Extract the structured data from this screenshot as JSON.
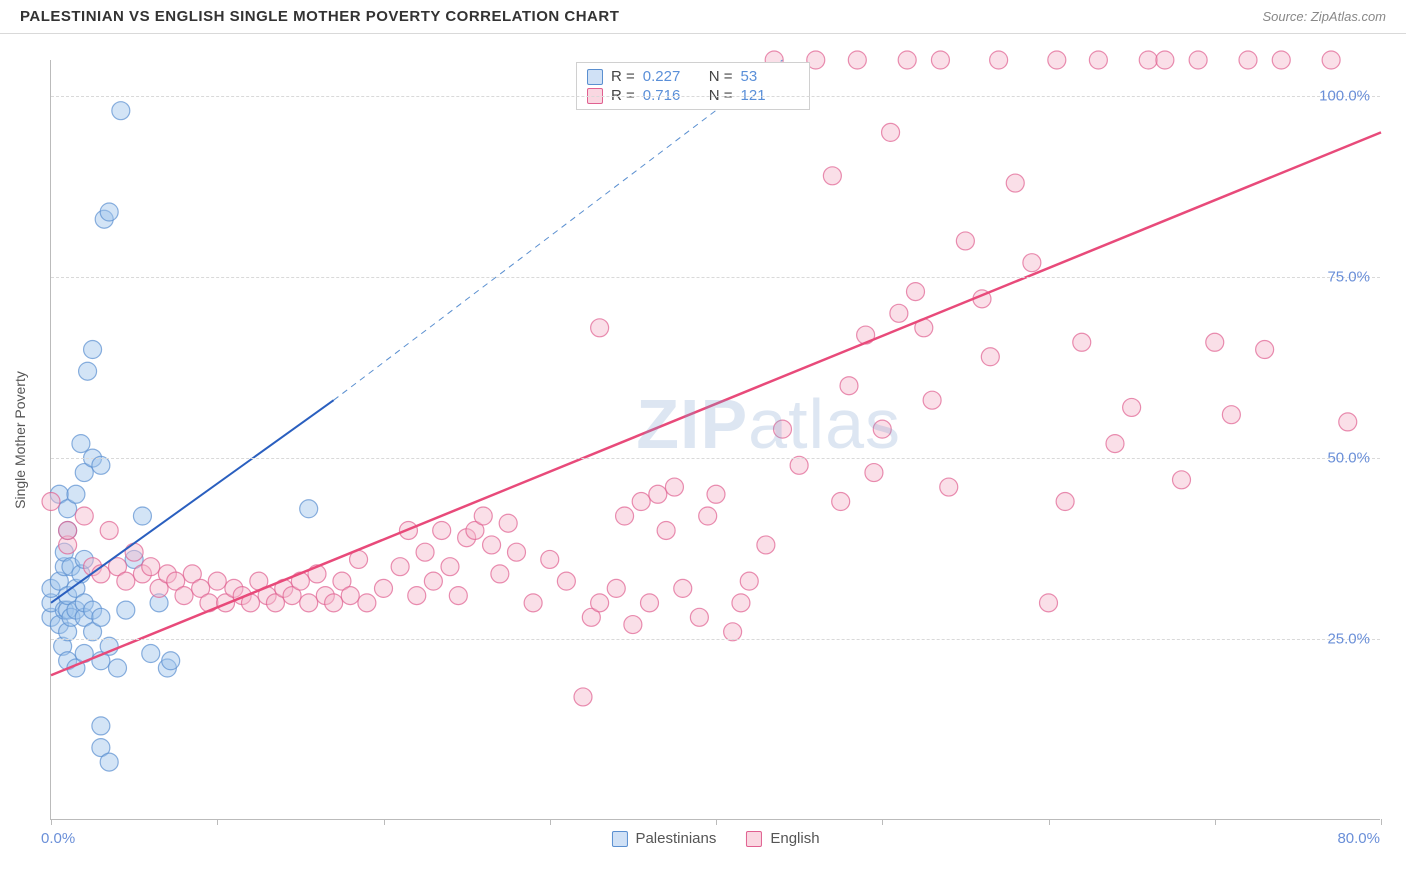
{
  "header": {
    "title": "PALESTINIAN VS ENGLISH SINGLE MOTHER POVERTY CORRELATION CHART",
    "source": "Source: ZipAtlas.com"
  },
  "chart": {
    "type": "scatter",
    "y_axis_label": "Single Mother Poverty",
    "xlim": [
      0,
      80
    ],
    "ylim": [
      0,
      105
    ],
    "x_label_start": "0.0%",
    "x_label_end": "80.0%",
    "y_ticks": [
      {
        "v": 25,
        "label": "25.0%"
      },
      {
        "v": 50,
        "label": "50.0%"
      },
      {
        "v": 75,
        "label": "75.0%"
      },
      {
        "v": 100,
        "label": "100.0%"
      }
    ],
    "x_tick_marks": [
      0,
      10,
      20,
      30,
      40,
      50,
      60,
      70,
      80
    ],
    "background_color": "#ffffff",
    "grid_color": "#d9d9d9",
    "marker_radius": 9,
    "marker_opacity": 0.45,
    "marker_stroke_width": 1.2,
    "watermark": "ZIPatlas",
    "series": [
      {
        "name": "Palestinians",
        "fill": "#9ec4ea",
        "stroke": "#5a8fd0",
        "r_value": "0.227",
        "n_value": "53",
        "trend": {
          "x1": 0,
          "y1": 30,
          "x2": 17,
          "y2": 58,
          "color": "#2a5fbf",
          "width": 2
        },
        "trend_dashed": {
          "x1": 17,
          "y1": 58,
          "x2": 44,
          "y2": 105,
          "color": "#5a8fd0",
          "width": 1
        },
        "points": [
          [
            0,
            28
          ],
          [
            0,
            30
          ],
          [
            0,
            32
          ],
          [
            0.5,
            27
          ],
          [
            0.5,
            33
          ],
          [
            0.5,
            45
          ],
          [
            0.7,
            24
          ],
          [
            0.8,
            29
          ],
          [
            0.8,
            35
          ],
          [
            0.8,
            37
          ],
          [
            1,
            22
          ],
          [
            1,
            26
          ],
          [
            1,
            29
          ],
          [
            1,
            31
          ],
          [
            1,
            40
          ],
          [
            1,
            43
          ],
          [
            1.2,
            28
          ],
          [
            1.2,
            35
          ],
          [
            1.5,
            21
          ],
          [
            1.5,
            29
          ],
          [
            1.5,
            32
          ],
          [
            1.5,
            45
          ],
          [
            1.8,
            34
          ],
          [
            1.8,
            52
          ],
          [
            2,
            23
          ],
          [
            2,
            28
          ],
          [
            2,
            30
          ],
          [
            2,
            36
          ],
          [
            2,
            48
          ],
          [
            2.2,
            62
          ],
          [
            2.5,
            26
          ],
          [
            2.5,
            29
          ],
          [
            2.5,
            50
          ],
          [
            2.5,
            65
          ],
          [
            3,
            10
          ],
          [
            3,
            13
          ],
          [
            3,
            22
          ],
          [
            3,
            28
          ],
          [
            3,
            49
          ],
          [
            3.2,
            83
          ],
          [
            3.5,
            8
          ],
          [
            3.5,
            24
          ],
          [
            3.5,
            84
          ],
          [
            4,
            21
          ],
          [
            4.2,
            98
          ],
          [
            4.5,
            29
          ],
          [
            5,
            36
          ],
          [
            5.5,
            42
          ],
          [
            6,
            23
          ],
          [
            6.5,
            30
          ],
          [
            7,
            21
          ],
          [
            7.2,
            22
          ],
          [
            15.5,
            43
          ]
        ]
      },
      {
        "name": "English",
        "fill": "#f5b8cc",
        "stroke": "#e06090",
        "r_value": "0.716",
        "n_value": "121",
        "trend": {
          "x1": 0,
          "y1": 20,
          "x2": 80,
          "y2": 95,
          "color": "#e84a7a",
          "width": 2.5
        },
        "points": [
          [
            0,
            44
          ],
          [
            1,
            38
          ],
          [
            1,
            40
          ],
          [
            2,
            42
          ],
          [
            2.5,
            35
          ],
          [
            3,
            34
          ],
          [
            3.5,
            40
          ],
          [
            4,
            35
          ],
          [
            4.5,
            33
          ],
          [
            5,
            37
          ],
          [
            5.5,
            34
          ],
          [
            6,
            35
          ],
          [
            6.5,
            32
          ],
          [
            7,
            34
          ],
          [
            7.5,
            33
          ],
          [
            8,
            31
          ],
          [
            8.5,
            34
          ],
          [
            9,
            32
          ],
          [
            9.5,
            30
          ],
          [
            10,
            33
          ],
          [
            10.5,
            30
          ],
          [
            11,
            32
          ],
          [
            11.5,
            31
          ],
          [
            12,
            30
          ],
          [
            12.5,
            33
          ],
          [
            13,
            31
          ],
          [
            13.5,
            30
          ],
          [
            14,
            32
          ],
          [
            14.5,
            31
          ],
          [
            15,
            33
          ],
          [
            15.5,
            30
          ],
          [
            16,
            34
          ],
          [
            16.5,
            31
          ],
          [
            17,
            30
          ],
          [
            17.5,
            33
          ],
          [
            18,
            31
          ],
          [
            18.5,
            36
          ],
          [
            19,
            30
          ],
          [
            20,
            32
          ],
          [
            21,
            35
          ],
          [
            21.5,
            40
          ],
          [
            22,
            31
          ],
          [
            22.5,
            37
          ],
          [
            23,
            33
          ],
          [
            23.5,
            40
          ],
          [
            24,
            35
          ],
          [
            24.5,
            31
          ],
          [
            25,
            39
          ],
          [
            25.5,
            40
          ],
          [
            26,
            42
          ],
          [
            26.5,
            38
          ],
          [
            27,
            34
          ],
          [
            27.5,
            41
          ],
          [
            28,
            37
          ],
          [
            29,
            30
          ],
          [
            30,
            36
          ],
          [
            31,
            33
          ],
          [
            32,
            17
          ],
          [
            32.5,
            28
          ],
          [
            33,
            30
          ],
          [
            33,
            68
          ],
          [
            34,
            32
          ],
          [
            34.5,
            42
          ],
          [
            35,
            27
          ],
          [
            35.5,
            44
          ],
          [
            36,
            30
          ],
          [
            36.5,
            45
          ],
          [
            37,
            40
          ],
          [
            37.5,
            46
          ],
          [
            38,
            32
          ],
          [
            39,
            28
          ],
          [
            39.5,
            42
          ],
          [
            40,
            45
          ],
          [
            41,
            26
          ],
          [
            41.5,
            30
          ],
          [
            42,
            33
          ],
          [
            43,
            38
          ],
          [
            43.5,
            105
          ],
          [
            44,
            54
          ],
          [
            45,
            49
          ],
          [
            45,
            103
          ],
          [
            46,
            105
          ],
          [
            47,
            89
          ],
          [
            47.5,
            44
          ],
          [
            48,
            60
          ],
          [
            48.5,
            105
          ],
          [
            49,
            67
          ],
          [
            49.5,
            48
          ],
          [
            50,
            54
          ],
          [
            50.5,
            95
          ],
          [
            51,
            70
          ],
          [
            51.5,
            105
          ],
          [
            52,
            73
          ],
          [
            52.5,
            68
          ],
          [
            53,
            58
          ],
          [
            53.5,
            105
          ],
          [
            54,
            46
          ],
          [
            55,
            80
          ],
          [
            56,
            72
          ],
          [
            56.5,
            64
          ],
          [
            57,
            105
          ],
          [
            58,
            88
          ],
          [
            59,
            77
          ],
          [
            60,
            30
          ],
          [
            60.5,
            105
          ],
          [
            61,
            44
          ],
          [
            62,
            66
          ],
          [
            63,
            105
          ],
          [
            64,
            52
          ],
          [
            65,
            57
          ],
          [
            66,
            105
          ],
          [
            67,
            105
          ],
          [
            68,
            47
          ],
          [
            69,
            105
          ],
          [
            70,
            66
          ],
          [
            71,
            56
          ],
          [
            72,
            105
          ],
          [
            73,
            65
          ],
          [
            74,
            105
          ],
          [
            77,
            105
          ],
          [
            78,
            55
          ]
        ]
      }
    ],
    "bottom_legend": [
      {
        "swatch": "blue",
        "label": "Palestinians"
      },
      {
        "swatch": "pink",
        "label": "English"
      }
    ]
  }
}
